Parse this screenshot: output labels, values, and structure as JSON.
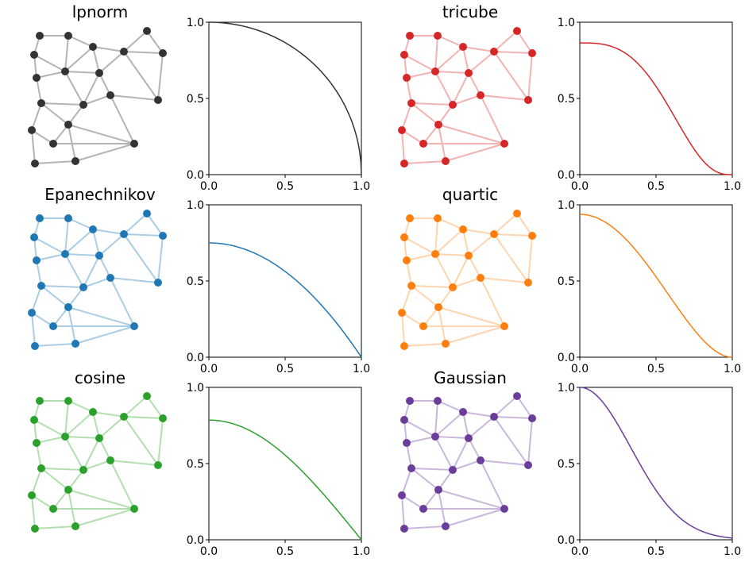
{
  "figure": {
    "node_color": "#333333",
    "edge_color": "#b4b4b4"
  },
  "chart_data": [
    {
      "type": "graph",
      "title": "lpnorm",
      "node_color": "#333333",
      "edge_color": "#b4b4b4",
      "kernel": {
        "type": "line",
        "function": "lpnorm",
        "xlim": [
          0,
          1
        ],
        "ylim": [
          0,
          1
        ],
        "xticks": [
          "0.0",
          "0.5",
          "1.0"
        ],
        "yticks": [
          "0.0",
          "0.5",
          "1.0"
        ],
        "line_color": "#333333",
        "peak": 1.0
      }
    },
    {
      "type": "graph",
      "title": "tricube",
      "node_color": "#d62728",
      "edge_color": "#f2b3b3",
      "kernel": {
        "type": "line",
        "function": "tricube",
        "xlim": [
          0,
          1
        ],
        "ylim": [
          0,
          1
        ],
        "xticks": [
          "0.0",
          "0.5",
          "1.0"
        ],
        "yticks": [
          "0.0",
          "0.5",
          "1.0"
        ],
        "line_color": "#d62728",
        "peak": 0.864
      }
    },
    {
      "type": "graph",
      "title": "Epanechnikov",
      "node_color": "#1f77b4",
      "edge_color": "#aacde3",
      "kernel": {
        "type": "line",
        "function": "epanechnikov",
        "xlim": [
          0,
          1
        ],
        "ylim": [
          0,
          1
        ],
        "xticks": [
          "0.0",
          "0.5",
          "1.0"
        ],
        "yticks": [
          "0.0",
          "0.5",
          "1.0"
        ],
        "line_color": "#1f77b4",
        "peak": 0.75
      }
    },
    {
      "type": "graph",
      "title": "quartic",
      "node_color": "#ff7f0e",
      "edge_color": "#fdd5ae",
      "kernel": {
        "type": "line",
        "function": "quartic",
        "xlim": [
          0,
          1
        ],
        "ylim": [
          0,
          1
        ],
        "xticks": [
          "0.0",
          "0.5",
          "1.0"
        ],
        "yticks": [
          "0.0",
          "0.5",
          "1.0"
        ],
        "line_color": "#ff7f0e",
        "peak": 0.9375
      }
    },
    {
      "type": "graph",
      "title": "cosine",
      "node_color": "#2ca02c",
      "edge_color": "#b3dfb0",
      "kernel": {
        "type": "line",
        "function": "cosine",
        "xlim": [
          0,
          1
        ],
        "ylim": [
          0,
          1
        ],
        "xticks": [
          "0.0",
          "0.5",
          "1.0"
        ],
        "yticks": [
          "0.0",
          "0.5",
          "1.0"
        ],
        "line_color": "#2ca02c",
        "peak": 0.785
      }
    },
    {
      "type": "graph",
      "title": "Gaussian",
      "node_color": "#6a3d9a",
      "edge_color": "#cab8dc",
      "kernel": {
        "type": "line",
        "function": "gaussian",
        "xlim": [
          0,
          1
        ],
        "ylim": [
          0,
          1
        ],
        "xticks": [
          "0.0",
          "0.5",
          "1.0"
        ],
        "yticks": [
          "0.0",
          "0.5",
          "1.0"
        ],
        "line_color": "#6a3d9a",
        "peak": 1.0
      }
    }
  ]
}
